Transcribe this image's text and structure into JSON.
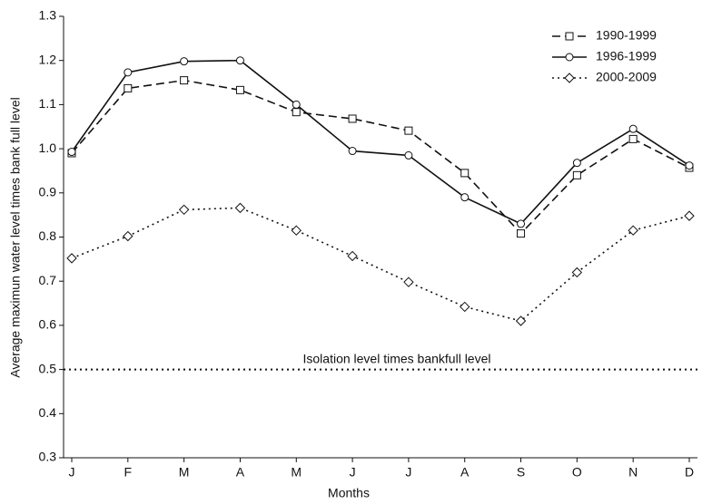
{
  "chart_data": {
    "type": "line",
    "x_label": "Months",
    "y_label": "Average maximun water level times bank full level",
    "categories": [
      "J",
      "F",
      "M",
      "A",
      "M",
      "J",
      "J",
      "A",
      "S",
      "O",
      "N",
      "D"
    ],
    "series": [
      {
        "name": "1990-1999",
        "color": "#111111",
        "dash": "9,5",
        "marker": "square",
        "values": [
          0.99,
          1.137,
          1.155,
          1.133,
          1.083,
          1.068,
          1.041,
          0.945,
          0.808,
          0.94,
          1.022,
          0.957
        ]
      },
      {
        "name": "1996-1999",
        "color": "#111111",
        "dash": "none",
        "marker": "circle",
        "values": [
          0.993,
          1.173,
          1.198,
          1.2,
          1.1,
          0.995,
          0.985,
          0.89,
          0.83,
          0.968,
          1.045,
          0.962
        ]
      },
      {
        "name": "2000-2009",
        "color": "#111111",
        "dash": "2,4",
        "marker": "diamond",
        "values": [
          0.752,
          0.802,
          0.862,
          0.866,
          0.815,
          0.757,
          0.698,
          0.642,
          0.61,
          0.72,
          0.815,
          0.848
        ]
      }
    ],
    "reference_line": {
      "value": 0.5,
      "label": "Isolation level times bankfull level"
    },
    "ylim": [
      0.3,
      1.3
    ],
    "yticks": [
      0.3,
      0.4,
      0.5,
      0.6,
      0.7,
      0.8,
      0.9,
      {
        "value": 1,
        "label": "1.0"
      },
      1.1,
      1.2,
      1.3
    ],
    "legend": "top-right"
  }
}
